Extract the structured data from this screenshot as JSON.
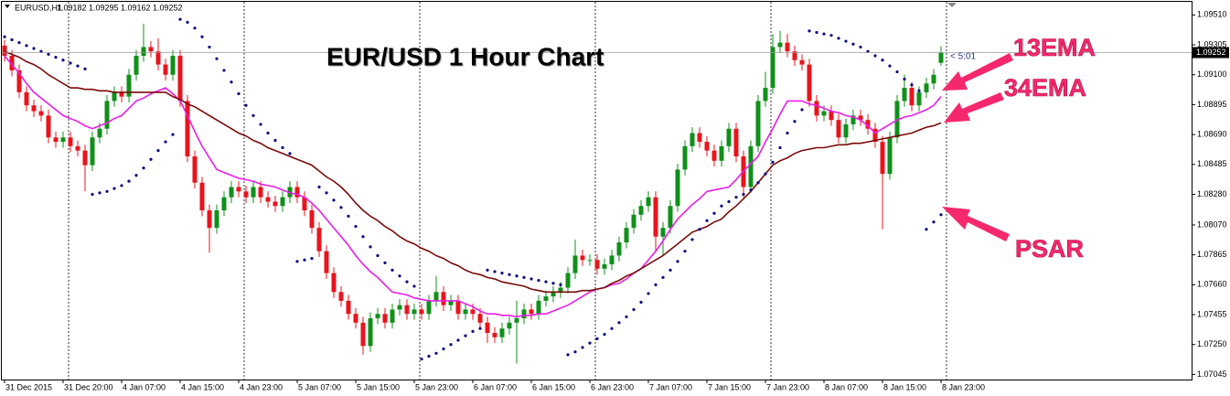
{
  "chart_data": {
    "type": "candlestick",
    "title": "EUR/USD 1 Hour Chart",
    "symbol": "EURUSD,H1",
    "timer": "< 5:01",
    "categories": [
      "31 Dec 2015",
      null,
      null,
      null,
      null,
      null,
      null,
      null,
      "31 Dec 20:00",
      null,
      null,
      null,
      null,
      null,
      null,
      null,
      "4 Jan 07:00",
      null,
      null,
      null,
      null,
      null,
      null,
      null,
      "4 Jan 15:00",
      null,
      null,
      null,
      null,
      null,
      null,
      null,
      "4 Jan 23:00",
      null,
      null,
      null,
      null,
      null,
      null,
      null,
      "5 Jan 07:00",
      null,
      null,
      null,
      null,
      null,
      null,
      null,
      "5 Jan 15:00",
      null,
      null,
      null,
      null,
      null,
      null,
      null,
      "5 Jan 23:00",
      null,
      null,
      null,
      null,
      null,
      null,
      null,
      "6 Jan 07:00",
      null,
      null,
      null,
      null,
      null,
      null,
      null,
      "6 Jan 15:00",
      null,
      null,
      null,
      null,
      null,
      null,
      null,
      "6 Jan 23:00",
      null,
      null,
      null,
      null,
      null,
      null,
      null,
      "7 Jan 07:00",
      null,
      null,
      null,
      null,
      null,
      null,
      null,
      "7 Jan 15:00",
      null,
      null,
      null,
      null,
      null,
      null,
      null,
      "7 Jan 23:00",
      null,
      null,
      null,
      null,
      null,
      null,
      null,
      "8 Jan 07:00",
      null,
      null,
      null,
      null,
      null,
      null,
      null,
      "8 Jan 15:00",
      null,
      null,
      null,
      null,
      null,
      null,
      null,
      "8 Jan 23:00"
    ],
    "open": [
      1.093,
      1.0923,
      1.0913,
      1.0898,
      1.0889,
      1.0885,
      1.0882,
      1.0867,
      1.0864,
      1.0867,
      1.0861,
      1.0858,
      1.0848,
      1.0867,
      1.0873,
      1.0892,
      1.0898,
      1.0895,
      1.091,
      1.0923,
      1.0929,
      1.0926,
      1.0917,
      1.091,
      1.0923,
      1.0892,
      1.0854,
      1.0836,
      1.0817,
      1.0805,
      1.0817,
      1.0826,
      1.0833,
      1.083,
      1.0826,
      1.0833,
      1.0826,
      1.0823,
      1.082,
      1.0826,
      1.0833,
      1.0826,
      1.0817,
      1.0805,
      1.0789,
      1.0774,
      1.0761,
      1.0755,
      1.0746,
      1.074,
      1.0724,
      1.0743,
      1.0746,
      1.074,
      1.0749,
      1.0752,
      1.0746,
      1.0749,
      1.0746,
      1.0755,
      1.0761,
      1.0752,
      1.0755,
      1.0746,
      1.0749,
      1.0746,
      1.074,
      1.0733,
      1.073,
      1.0736,
      1.074,
      1.0743,
      1.0749,
      1.0746,
      1.0755,
      1.0758,
      1.0761,
      1.0764,
      1.0774,
      1.0786,
      1.0783,
      1.0783,
      1.0777,
      1.078,
      1.0786,
      1.0795,
      1.0805,
      1.0814,
      1.082,
      1.0826,
      1.0799,
      1.0805,
      1.082,
      1.0845,
      1.0861,
      1.087,
      1.0864,
      1.0858,
      1.0851,
      1.0861,
      1.0873,
      1.0854,
      1.0833,
      1.0861,
      1.0892,
      1.0901,
      1.0929,
      1.0932,
      1.0926,
      1.092,
      1.0917,
      1.0892,
      1.0882,
      1.0885,
      1.0879,
      1.0867,
      1.0876,
      1.0882,
      1.0879,
      1.0873,
      1.0864,
      1.0842,
      1.0867,
      1.0892,
      1.0901,
      1.0889,
      1.0898,
      1.0904,
      1.09182
    ],
    "high": [
      1.0934,
      1.0927,
      1.0917,
      1.0902,
      1.0893,
      1.0889,
      1.0886,
      1.0871,
      1.0871,
      1.0871,
      1.0865,
      1.0862,
      1.0871,
      1.0877,
      1.0896,
      1.0902,
      1.0902,
      1.0914,
      1.0927,
      1.0945,
      1.0933,
      1.0935,
      1.0921,
      1.0927,
      1.0927,
      1.0896,
      1.0858,
      1.084,
      1.0821,
      1.0821,
      1.083,
      1.0837,
      1.0837,
      1.0834,
      1.0837,
      1.0837,
      1.083,
      1.0827,
      1.083,
      1.0837,
      1.0837,
      1.083,
      1.0821,
      1.0809,
      1.0793,
      1.0778,
      1.0765,
      1.0759,
      1.075,
      1.0744,
      1.0747,
      1.075,
      1.075,
      1.0753,
      1.0756,
      1.0756,
      1.0753,
      1.0753,
      1.0759,
      1.0772,
      1.0765,
      1.0759,
      1.0759,
      1.0753,
      1.0753,
      1.075,
      1.0744,
      1.0737,
      1.074,
      1.0744,
      1.0755,
      1.0753,
      1.0753,
      1.0759,
      1.0762,
      1.0765,
      1.0768,
      1.0778,
      1.0797,
      1.079,
      1.0787,
      1.0787,
      1.0784,
      1.079,
      1.0799,
      1.0809,
      1.0818,
      1.0824,
      1.083,
      1.083,
      1.0809,
      1.0824,
      1.0849,
      1.0865,
      1.0874,
      1.0874,
      1.0868,
      1.0862,
      1.0865,
      1.0877,
      1.0877,
      1.0858,
      1.0865,
      1.0896,
      1.0912,
      1.0938,
      1.094,
      1.0938,
      1.093,
      1.0924,
      1.0921,
      1.0896,
      1.0889,
      1.0889,
      1.0883,
      1.088,
      1.0886,
      1.0886,
      1.0883,
      1.0877,
      1.0868,
      1.0871,
      1.0896,
      1.091,
      1.0905,
      1.0902,
      1.0908,
      1.0914,
      1.09295
    ],
    "low": [
      1.0919,
      1.0909,
      1.0894,
      1.0885,
      1.0881,
      1.0878,
      1.0863,
      1.086,
      1.086,
      1.0857,
      1.0854,
      1.083,
      1.0844,
      1.0863,
      1.0869,
      1.0888,
      1.0891,
      1.0891,
      1.0906,
      1.0919,
      1.0922,
      1.0913,
      1.0906,
      1.0906,
      1.0888,
      1.085,
      1.0832,
      1.0813,
      1.0788,
      1.0801,
      1.0813,
      1.0822,
      1.0826,
      1.0822,
      1.0822,
      1.0822,
      1.0819,
      1.0816,
      1.0816,
      1.0822,
      1.0822,
      1.0813,
      1.0801,
      1.0785,
      1.077,
      1.0757,
      1.0751,
      1.0742,
      1.0736,
      1.0718,
      1.072,
      1.0739,
      1.0736,
      1.0736,
      1.0745,
      1.0742,
      1.0742,
      1.0742,
      1.0742,
      1.0751,
      1.0748,
      1.0748,
      1.0742,
      1.0742,
      1.0742,
      1.0736,
      1.0726,
      1.0726,
      1.0726,
      1.0732,
      1.0712,
      1.0739,
      1.0742,
      1.0742,
      1.0751,
      1.0754,
      1.0757,
      1.076,
      1.077,
      1.0779,
      1.0779,
      1.0773,
      1.0773,
      1.0776,
      1.0782,
      1.0791,
      1.0801,
      1.081,
      1.0816,
      1.0789,
      1.0786,
      1.0801,
      1.0816,
      1.0841,
      1.0857,
      1.086,
      1.0854,
      1.0847,
      1.0847,
      1.0857,
      1.085,
      1.0826,
      1.0829,
      1.0857,
      1.0888,
      1.0897,
      1.0925,
      1.0922,
      1.0916,
      1.0913,
      1.0888,
      1.0878,
      1.0878,
      1.0875,
      1.0863,
      1.0863,
      1.0872,
      1.0875,
      1.0869,
      1.086,
      1.0804,
      1.0838,
      1.0863,
      1.0888,
      1.0885,
      1.0885,
      1.0894,
      1.09,
      1.09162
    ],
    "close": [
      1.0923,
      1.0913,
      1.0898,
      1.0889,
      1.0885,
      1.0882,
      1.0867,
      1.0864,
      1.0867,
      1.0861,
      1.0858,
      1.0848,
      1.0867,
      1.0873,
      1.0892,
      1.0898,
      1.0895,
      1.091,
      1.0923,
      1.0929,
      1.0926,
      1.0917,
      1.091,
      1.0923,
      1.0892,
      1.0854,
      1.0836,
      1.0817,
      1.0805,
      1.0817,
      1.0826,
      1.0833,
      1.083,
      1.0826,
      1.0833,
      1.0826,
      1.0823,
      1.082,
      1.0826,
      1.0833,
      1.0826,
      1.0817,
      1.0805,
      1.0789,
      1.0774,
      1.0761,
      1.0755,
      1.0746,
      1.074,
      1.0724,
      1.0743,
      1.0746,
      1.074,
      1.0749,
      1.0752,
      1.0746,
      1.0749,
      1.0746,
      1.0755,
      1.0761,
      1.0752,
      1.0755,
      1.0746,
      1.0749,
      1.0746,
      1.074,
      1.0733,
      1.073,
      1.0736,
      1.074,
      1.0743,
      1.0749,
      1.0746,
      1.0755,
      1.0758,
      1.0761,
      1.0764,
      1.0774,
      1.0786,
      1.0783,
      1.0783,
      1.0777,
      1.078,
      1.0786,
      1.0795,
      1.0805,
      1.0814,
      1.082,
      1.0826,
      1.0799,
      1.0805,
      1.082,
      1.0845,
      1.0861,
      1.087,
      1.0864,
      1.0858,
      1.0851,
      1.0861,
      1.0873,
      1.0854,
      1.0833,
      1.0861,
      1.0892,
      1.0901,
      1.0929,
      1.0932,
      1.0926,
      1.092,
      1.0917,
      1.0892,
      1.0882,
      1.0885,
      1.0879,
      1.0867,
      1.0876,
      1.0882,
      1.0879,
      1.0873,
      1.0864,
      1.0842,
      1.0867,
      1.0892,
      1.0901,
      1.0889,
      1.0898,
      1.0904,
      1.091,
      1.09252
    ],
    "up_color": "#10901a",
    "down_color": "#e8141c",
    "series": [
      {
        "name": "13EMA",
        "style": "line",
        "color": "#e81ee8",
        "values": [
          1.0923,
          1.0917,
          1.0911,
          1.0904,
          1.0898,
          1.0894,
          1.089,
          1.0886,
          1.0882,
          1.088,
          1.0878,
          1.0875,
          1.0873,
          1.0875,
          1.0877,
          1.088,
          1.0882,
          1.0887,
          1.0892,
          1.0894,
          1.0897,
          1.0899,
          1.0901,
          1.0897,
          1.0892,
          1.0882,
          1.0871,
          1.0861,
          1.0853,
          1.0845,
          1.0843,
          1.0841,
          1.0839,
          1.0838,
          1.0837,
          1.0835,
          1.0834,
          1.0833,
          1.0831,
          1.0829,
          1.0828,
          1.0826,
          1.0822,
          1.0817,
          1.0811,
          1.0805,
          1.0799,
          1.0793,
          1.0786,
          1.078,
          1.0775,
          1.0771,
          1.0766,
          1.0761,
          1.076,
          1.0759,
          1.0757,
          1.0756,
          1.0755,
          1.0755,
          1.0755,
          1.0755,
          1.0755,
          1.0753,
          1.0751,
          1.0748,
          1.0746,
          1.0746,
          1.0745,
          1.0745,
          1.0744,
          1.0745,
          1.0745,
          1.0746,
          1.0746,
          1.0748,
          1.075,
          1.0752,
          1.0755,
          1.0758,
          1.0761,
          1.0763,
          1.0764,
          1.0766,
          1.0767,
          1.077,
          1.0774,
          1.0777,
          1.0783,
          1.0789,
          1.0796,
          1.0804,
          1.0811,
          1.0816,
          1.0821,
          1.0825,
          1.083,
          1.0831,
          1.0832,
          1.0833,
          1.0838,
          1.0844,
          1.0849,
          1.0854,
          1.0864,
          1.0873,
          1.0883,
          1.0892,
          1.0892,
          1.0892,
          1.089,
          1.0889,
          1.0887,
          1.0885,
          1.0884,
          1.0882,
          1.0881,
          1.0879,
          1.0875,
          1.087,
          1.0873,
          1.0876,
          1.0879,
          1.0881,
          1.0882,
          1.0884,
          1.0886,
          1.0889,
          1.0895
        ]
      },
      {
        "name": "34EMA",
        "style": "line",
        "color": "#7a0a0a",
        "values": [
          1.0926,
          1.0924,
          1.0922,
          1.0919,
          1.0917,
          1.0914,
          1.091,
          1.0907,
          1.0904,
          1.0901,
          1.0901,
          1.09,
          1.09,
          1.0899,
          1.0899,
          1.0898,
          1.0898,
          1.0898,
          1.0898,
          1.0898,
          1.0898,
          1.0898,
          1.0898,
          1.0895,
          1.0893,
          1.089,
          1.0888,
          1.0885,
          1.0882,
          1.0879,
          1.0876,
          1.0873,
          1.087,
          1.0868,
          1.0865,
          1.0863,
          1.086,
          1.0858,
          1.0856,
          1.0854,
          1.0852,
          1.085,
          1.0848,
          1.0844,
          1.084,
          1.0837,
          1.0833,
          1.0828,
          1.0822,
          1.0817,
          1.0813,
          1.081,
          1.0806,
          1.0803,
          1.0799,
          1.0796,
          1.0794,
          1.0791,
          1.0789,
          1.0786,
          1.0784,
          1.0781,
          1.0779,
          1.0776,
          1.0774,
          1.0773,
          1.0771,
          1.077,
          1.0768,
          1.0767,
          1.0766,
          1.0765,
          1.0763,
          1.0762,
          1.0761,
          1.0761,
          1.0761,
          1.0761,
          1.0761,
          1.0762,
          1.0762,
          1.0763,
          1.0764,
          1.0767,
          1.0769,
          1.0772,
          1.0774,
          1.0777,
          1.078,
          1.0783,
          1.0786,
          1.079,
          1.0794,
          1.0798,
          1.0802,
          1.0804,
          1.0806,
          1.0809,
          1.0811,
          1.0816,
          1.082,
          1.0825,
          1.083,
          1.0836,
          1.0842,
          1.0848,
          1.0851,
          1.0853,
          1.0856,
          1.0858,
          1.0859,
          1.086,
          1.086,
          1.0861,
          1.0862,
          1.0862,
          1.0863,
          1.0863,
          1.0864,
          1.0865,
          1.0866,
          1.0867,
          1.0868,
          1.0869,
          1.087,
          1.0872,
          1.0874,
          1.0875,
          1.0877
        ]
      },
      {
        "name": "PSAR",
        "style": "dots",
        "color": "#0a0a80",
        "values": [
          1.0936,
          1.0934,
          1.0932,
          1.093,
          1.0928,
          1.0926,
          1.0924,
          1.0922,
          1.092,
          1.0918,
          1.0916,
          1.0914,
          1.0828,
          1.0829,
          1.083,
          1.0832,
          1.0834,
          1.0837,
          1.0841,
          1.0846,
          1.0852,
          1.0858,
          1.0864,
          1.0869,
          1.0948,
          1.0946,
          1.0942,
          1.0936,
          1.0929,
          1.0921,
          1.0913,
          1.0905,
          1.0897,
          1.0889,
          1.0882,
          1.0876,
          1.087,
          1.0865,
          1.086,
          1.0856,
          1.0782,
          1.0783,
          1.0784,
          1.0833,
          1.0829,
          1.0824,
          1.0819,
          1.0813,
          1.0806,
          1.0799,
          1.0792,
          1.0786,
          1.0781,
          1.0776,
          1.0772,
          1.0768,
          1.0765,
          1.0715,
          1.0717,
          1.0719,
          1.0722,
          1.0725,
          1.0728,
          1.0731,
          1.0734,
          1.0736,
          1.0776,
          1.0775,
          1.0774,
          1.0773,
          1.0772,
          1.0771,
          1.077,
          1.0769,
          1.0768,
          1.0767,
          1.0766,
          1.0718,
          1.072,
          1.0723,
          1.0726,
          1.0729,
          1.0732,
          1.0736,
          1.074,
          1.0744,
          1.0749,
          1.0754,
          1.076,
          1.0766,
          1.0771,
          1.0776,
          1.0782,
          1.0789,
          1.0797,
          1.0804,
          1.081,
          1.0815,
          1.082,
          1.0823,
          1.0826,
          1.0828,
          1.0831,
          1.0836,
          1.0842,
          1.085,
          1.086,
          1.087,
          1.0878,
          1.0886,
          1.094,
          1.0939,
          1.0938,
          1.0937,
          1.0935,
          1.0933,
          1.0931,
          1.0929,
          1.0926,
          1.0923,
          1.092,
          1.0916,
          1.0912,
          1.0907,
          1.0903,
          1.0899,
          1.0804,
          1.0809,
          1.0814
        ]
      }
    ],
    "ylim": [
      1.0701,
      1.096
    ],
    "yticks": [
      {
        "value": 1.0951,
        "label": "1.09510"
      },
      1.09305,
      {
        "value": 1.091,
        "label": "1.09100"
      },
      1.08895,
      {
        "value": 1.0869,
        "label": "1.08690"
      },
      1.08485,
      {
        "value": 1.0828,
        "label": "1.08280"
      },
      {
        "value": 1.0807,
        "label": "1.08070"
      },
      1.07865,
      {
        "value": 1.0766,
        "label": "1.07660"
      },
      1.07455,
      {
        "value": 1.0725,
        "label": "1.07250"
      },
      1.07045
    ]
  }
}
